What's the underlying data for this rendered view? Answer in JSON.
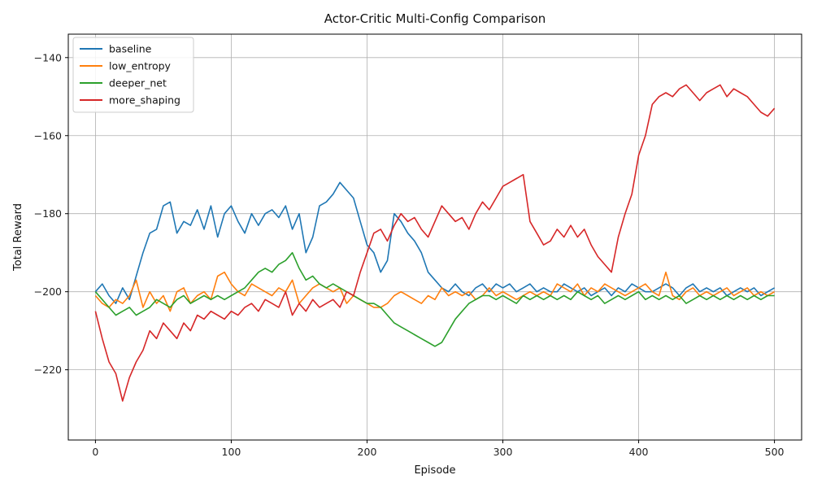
{
  "chart_data": {
    "type": "line",
    "title": "Actor-Critic Multi-Config Comparison",
    "xlabel": "Episode",
    "ylabel": "Total Reward",
    "xlim": [
      -20,
      520
    ],
    "ylim": [
      -238,
      -134
    ],
    "xticks": [
      0,
      100,
      200,
      300,
      400,
      500
    ],
    "yticks": [
      -220,
      -200,
      -180,
      -160,
      -140
    ],
    "grid": true,
    "legend_position": "top-left",
    "series": [
      {
        "name": "baseline",
        "color": "#1f77b4",
        "x": [
          0,
          5,
          10,
          15,
          20,
          25,
          30,
          35,
          40,
          45,
          50,
          55,
          60,
          65,
          70,
          75,
          80,
          85,
          90,
          95,
          100,
          105,
          110,
          115,
          120,
          125,
          130,
          135,
          140,
          145,
          150,
          155,
          160,
          165,
          170,
          175,
          180,
          185,
          190,
          195,
          200,
          205,
          210,
          215,
          220,
          225,
          230,
          235,
          240,
          245,
          250,
          255,
          260,
          265,
          270,
          275,
          280,
          285,
          290,
          295,
          300,
          305,
          310,
          315,
          320,
          325,
          330,
          335,
          340,
          345,
          350,
          355,
          360,
          365,
          370,
          375,
          380,
          385,
          390,
          395,
          400,
          405,
          410,
          415,
          420,
          425,
          430,
          435,
          440,
          445,
          450,
          455,
          460,
          465,
          470,
          475,
          480,
          485,
          490,
          495,
          500
        ],
        "y": [
          -200,
          -198,
          -201,
          -203,
          -199,
          -202,
          -196,
          -190,
          -185,
          -184,
          -178,
          -177,
          -185,
          -182,
          -183,
          -179,
          -184,
          -178,
          -186,
          -180,
          -178,
          -182,
          -185,
          -180,
          -183,
          -180,
          -179,
          -181,
          -178,
          -184,
          -180,
          -190,
          -186,
          -178,
          -177,
          -175,
          -172,
          -174,
          -176,
          -182,
          -188,
          -190,
          -195,
          -192,
          -180,
          -182,
          -185,
          -187,
          -190,
          -195,
          -197,
          -199,
          -200,
          -198,
          -200,
          -201,
          -199,
          -198,
          -200,
          -198,
          -199,
          -198,
          -200,
          -199,
          -198,
          -200,
          -199,
          -200,
          -200,
          -198,
          -199,
          -200,
          -199,
          -201,
          -200,
          -199,
          -201,
          -199,
          -200,
          -198,
          -199,
          -200,
          -200,
          -199,
          -198,
          -199,
          -201,
          -199,
          -198,
          -200,
          -199,
          -200,
          -199,
          -201,
          -200,
          -199,
          -200,
          -199,
          -201,
          -200,
          -199
        ]
      },
      {
        "name": "low_entropy",
        "color": "#ff7f0e",
        "x": [
          0,
          5,
          10,
          15,
          20,
          25,
          30,
          35,
          40,
          45,
          50,
          55,
          60,
          65,
          70,
          75,
          80,
          85,
          90,
          95,
          100,
          105,
          110,
          115,
          120,
          125,
          130,
          135,
          140,
          145,
          150,
          155,
          160,
          165,
          170,
          175,
          180,
          185,
          190,
          195,
          200,
          205,
          210,
          215,
          220,
          225,
          230,
          235,
          240,
          245,
          250,
          255,
          260,
          265,
          270,
          275,
          280,
          285,
          290,
          295,
          300,
          305,
          310,
          315,
          320,
          325,
          330,
          335,
          340,
          345,
          350,
          355,
          360,
          365,
          370,
          375,
          380,
          385,
          390,
          395,
          400,
          405,
          410,
          415,
          420,
          425,
          430,
          435,
          440,
          445,
          450,
          455,
          460,
          465,
          470,
          475,
          480,
          485,
          490,
          495,
          500
        ],
        "y": [
          -201,
          -203,
          -204,
          -202,
          -203,
          -201,
          -197,
          -204,
          -200,
          -203,
          -201,
          -205,
          -200,
          -199,
          -203,
          -201,
          -200,
          -202,
          -196,
          -195,
          -198,
          -200,
          -201,
          -198,
          -199,
          -200,
          -201,
          -199,
          -200,
          -197,
          -203,
          -201,
          -199,
          -198,
          -199,
          -200,
          -199,
          -203,
          -201,
          -202,
          -203,
          -204,
          -204,
          -203,
          -201,
          -200,
          -201,
          -202,
          -203,
          -201,
          -202,
          -199,
          -201,
          -200,
          -201,
          -200,
          -202,
          -201,
          -199,
          -201,
          -200,
          -201,
          -202,
          -201,
          -200,
          -201,
          -200,
          -201,
          -198,
          -199,
          -200,
          -198,
          -201,
          -199,
          -200,
          -198,
          -199,
          -200,
          -201,
          -200,
          -199,
          -198,
          -200,
          -201,
          -195,
          -201,
          -202,
          -200,
          -199,
          -201,
          -200,
          -201,
          -200,
          -199,
          -201,
          -200,
          -199,
          -201,
          -200,
          -201,
          -200
        ]
      },
      {
        "name": "deeper_net",
        "color": "#2ca02c",
        "x": [
          0,
          5,
          10,
          15,
          20,
          25,
          30,
          35,
          40,
          45,
          50,
          55,
          60,
          65,
          70,
          75,
          80,
          85,
          90,
          95,
          100,
          105,
          110,
          115,
          120,
          125,
          130,
          135,
          140,
          145,
          150,
          155,
          160,
          165,
          170,
          175,
          180,
          185,
          190,
          195,
          200,
          205,
          210,
          215,
          220,
          225,
          230,
          235,
          240,
          245,
          250,
          255,
          260,
          265,
          270,
          275,
          280,
          285,
          290,
          295,
          300,
          305,
          310,
          315,
          320,
          325,
          330,
          335,
          340,
          345,
          350,
          355,
          360,
          365,
          370,
          375,
          380,
          385,
          390,
          395,
          400,
          405,
          410,
          415,
          420,
          425,
          430,
          435,
          440,
          445,
          450,
          455,
          460,
          465,
          470,
          475,
          480,
          485,
          490,
          495,
          500
        ],
        "y": [
          -200,
          -202,
          -204,
          -206,
          -205,
          -204,
          -206,
          -205,
          -204,
          -202,
          -203,
          -204,
          -202,
          -201,
          -203,
          -202,
          -201,
          -202,
          -201,
          -202,
          -201,
          -200,
          -199,
          -197,
          -195,
          -194,
          -195,
          -193,
          -192,
          -190,
          -194,
          -197,
          -196,
          -198,
          -199,
          -198,
          -199,
          -200,
          -201,
          -202,
          -203,
          -203,
          -204,
          -206,
          -208,
          -209,
          -210,
          -211,
          -212,
          -213,
          -214,
          -213,
          -210,
          -207,
          -205,
          -203,
          -202,
          -201,
          -201,
          -202,
          -201,
          -202,
          -203,
          -201,
          -202,
          -201,
          -202,
          -201,
          -202,
          -201,
          -202,
          -200,
          -201,
          -202,
          -201,
          -203,
          -202,
          -201,
          -202,
          -201,
          -200,
          -202,
          -201,
          -202,
          -201,
          -202,
          -201,
          -203,
          -202,
          -201,
          -202,
          -201,
          -202,
          -201,
          -202,
          -201,
          -202,
          -201,
          -202,
          -201,
          -201
        ]
      },
      {
        "name": "more_shaping",
        "color": "#d62728",
        "x": [
          0,
          5,
          10,
          15,
          20,
          25,
          30,
          35,
          40,
          45,
          50,
          55,
          60,
          65,
          70,
          75,
          80,
          85,
          90,
          95,
          100,
          105,
          110,
          115,
          120,
          125,
          130,
          135,
          140,
          145,
          150,
          155,
          160,
          165,
          170,
          175,
          180,
          185,
          190,
          195,
          200,
          205,
          210,
          215,
          220,
          225,
          230,
          235,
          240,
          245,
          250,
          255,
          260,
          265,
          270,
          275,
          280,
          285,
          290,
          295,
          300,
          305,
          310,
          315,
          320,
          325,
          330,
          335,
          340,
          345,
          350,
          355,
          360,
          365,
          370,
          375,
          380,
          385,
          390,
          395,
          400,
          405,
          410,
          415,
          420,
          425,
          430,
          435,
          440,
          445,
          450,
          455,
          460,
          465,
          470,
          475,
          480,
          485,
          490,
          495,
          500
        ],
        "y": [
          -205,
          -212,
          -218,
          -221,
          -228,
          -222,
          -218,
          -215,
          -210,
          -212,
          -208,
          -210,
          -212,
          -208,
          -210,
          -206,
          -207,
          -205,
          -206,
          -207,
          -205,
          -206,
          -204,
          -203,
          -205,
          -202,
          -203,
          -204,
          -200,
          -206,
          -203,
          -205,
          -202,
          -204,
          -203,
          -202,
          -204,
          -200,
          -201,
          -195,
          -190,
          -185,
          -184,
          -187,
          -183,
          -180,
          -182,
          -181,
          -184,
          -186,
          -182,
          -178,
          -180,
          -182,
          -181,
          -184,
          -180,
          -177,
          -179,
          -176,
          -173,
          -172,
          -171,
          -170,
          -182,
          -185,
          -188,
          -187,
          -184,
          -186,
          -183,
          -186,
          -184,
          -188,
          -191,
          -193,
          -195,
          -186,
          -180,
          -175,
          -165,
          -160,
          -152,
          -150,
          -149,
          -150,
          -148,
          -147,
          -149,
          -151,
          -149,
          -148,
          -147,
          -150,
          -148,
          -149,
          -150,
          -152,
          -154,
          -155,
          -153
        ]
      }
    ]
  }
}
